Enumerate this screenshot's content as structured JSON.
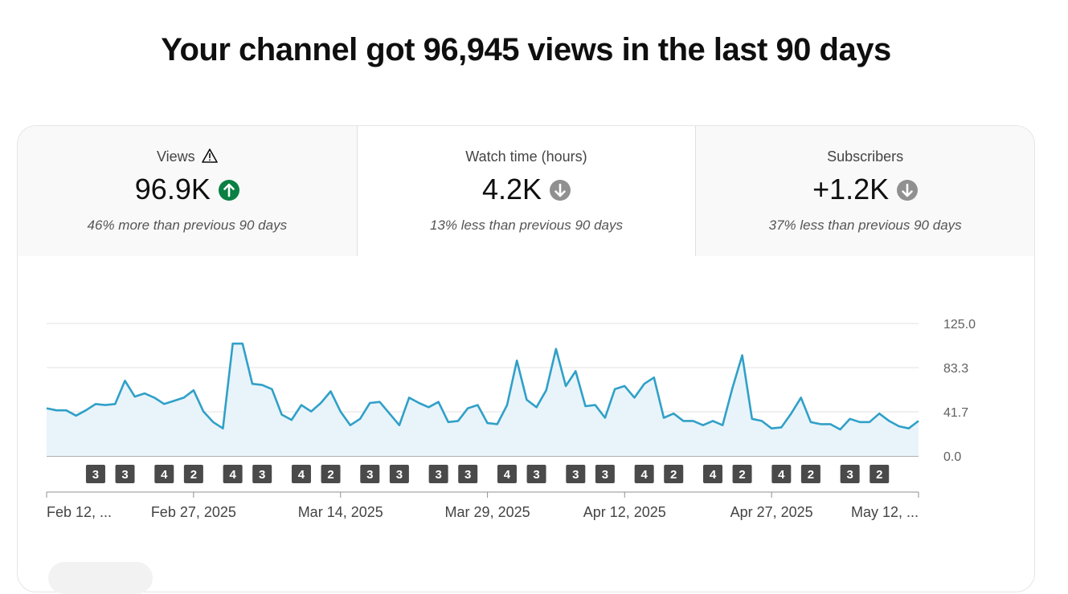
{
  "headline": "Your channel got 96,945 views in the last 90 days",
  "tabs": [
    {
      "label": "Views",
      "value": "96.9K",
      "trend": "up",
      "compare": "46% more than previous 90 days",
      "warning": true
    },
    {
      "label": "Watch time (hours)",
      "value": "4.2K",
      "trend": "down",
      "compare": "13% less than previous 90 days",
      "warning": false
    },
    {
      "label": "Subscribers",
      "value": "+1.2K",
      "trend": "down",
      "compare": "37% less than previous 90 days",
      "warning": false
    }
  ],
  "colors": {
    "line": "#30a0c8",
    "fill": "#e8f4fa",
    "up": "#0b8043",
    "down": "#909090",
    "badge": "#4a4a4a"
  },
  "chart_data": {
    "type": "area",
    "series": [
      {
        "values": [
          45,
          43,
          43,
          38,
          43,
          49,
          48,
          49,
          71,
          56,
          59,
          55,
          49,
          52,
          55,
          62,
          42,
          32,
          26,
          106,
          106,
          68,
          67,
          63,
          39,
          34,
          48,
          42,
          50,
          61,
          42,
          29,
          35,
          50,
          51,
          40,
          29,
          55,
          50,
          46,
          51,
          32,
          33,
          45,
          48,
          31,
          30,
          48,
          90,
          53,
          46,
          62,
          101,
          66,
          80,
          47,
          48,
          36,
          63,
          66,
          55,
          68,
          74,
          36,
          40,
          33,
          33,
          29,
          33,
          29,
          64,
          95,
          35,
          33,
          26,
          27,
          40,
          55,
          32,
          30,
          30,
          25,
          35,
          32,
          32,
          40,
          33,
          28,
          26,
          33
        ]
      }
    ],
    "ylim": [
      0,
      125
    ],
    "ytick_labels": [
      "125.0",
      "83.3",
      "41.7",
      "0.0"
    ],
    "xtick_labels": [
      "Feb 12, ...",
      "Feb 27, 2025",
      "Mar 14, 2025",
      "Mar 29, 2025",
      "Apr 12, 2025",
      "Apr 27, 2025",
      "May 12, ..."
    ],
    "xtick_index": [
      0,
      15,
      30,
      45,
      59,
      74,
      89
    ],
    "markers": [
      {
        "text": "3",
        "index": 5
      },
      {
        "text": "3",
        "index": 8
      },
      {
        "text": "4",
        "index": 12
      },
      {
        "text": "2",
        "index": 15
      },
      {
        "text": "4",
        "index": 19
      },
      {
        "text": "3",
        "index": 22
      },
      {
        "text": "4",
        "index": 26
      },
      {
        "text": "2",
        "index": 29
      },
      {
        "text": "3",
        "index": 33
      },
      {
        "text": "3",
        "index": 36
      },
      {
        "text": "3",
        "index": 40
      },
      {
        "text": "3",
        "index": 43
      },
      {
        "text": "4",
        "index": 47
      },
      {
        "text": "3",
        "index": 50
      },
      {
        "text": "3",
        "index": 54
      },
      {
        "text": "3",
        "index": 57
      },
      {
        "text": "4",
        "index": 61
      },
      {
        "text": "2",
        "index": 64
      },
      {
        "text": "4",
        "index": 68
      },
      {
        "text": "2",
        "index": 71
      },
      {
        "text": "4",
        "index": 75
      },
      {
        "text": "2",
        "index": 78
      },
      {
        "text": "3",
        "index": 82
      },
      {
        "text": "2",
        "index": 85
      }
    ]
  }
}
